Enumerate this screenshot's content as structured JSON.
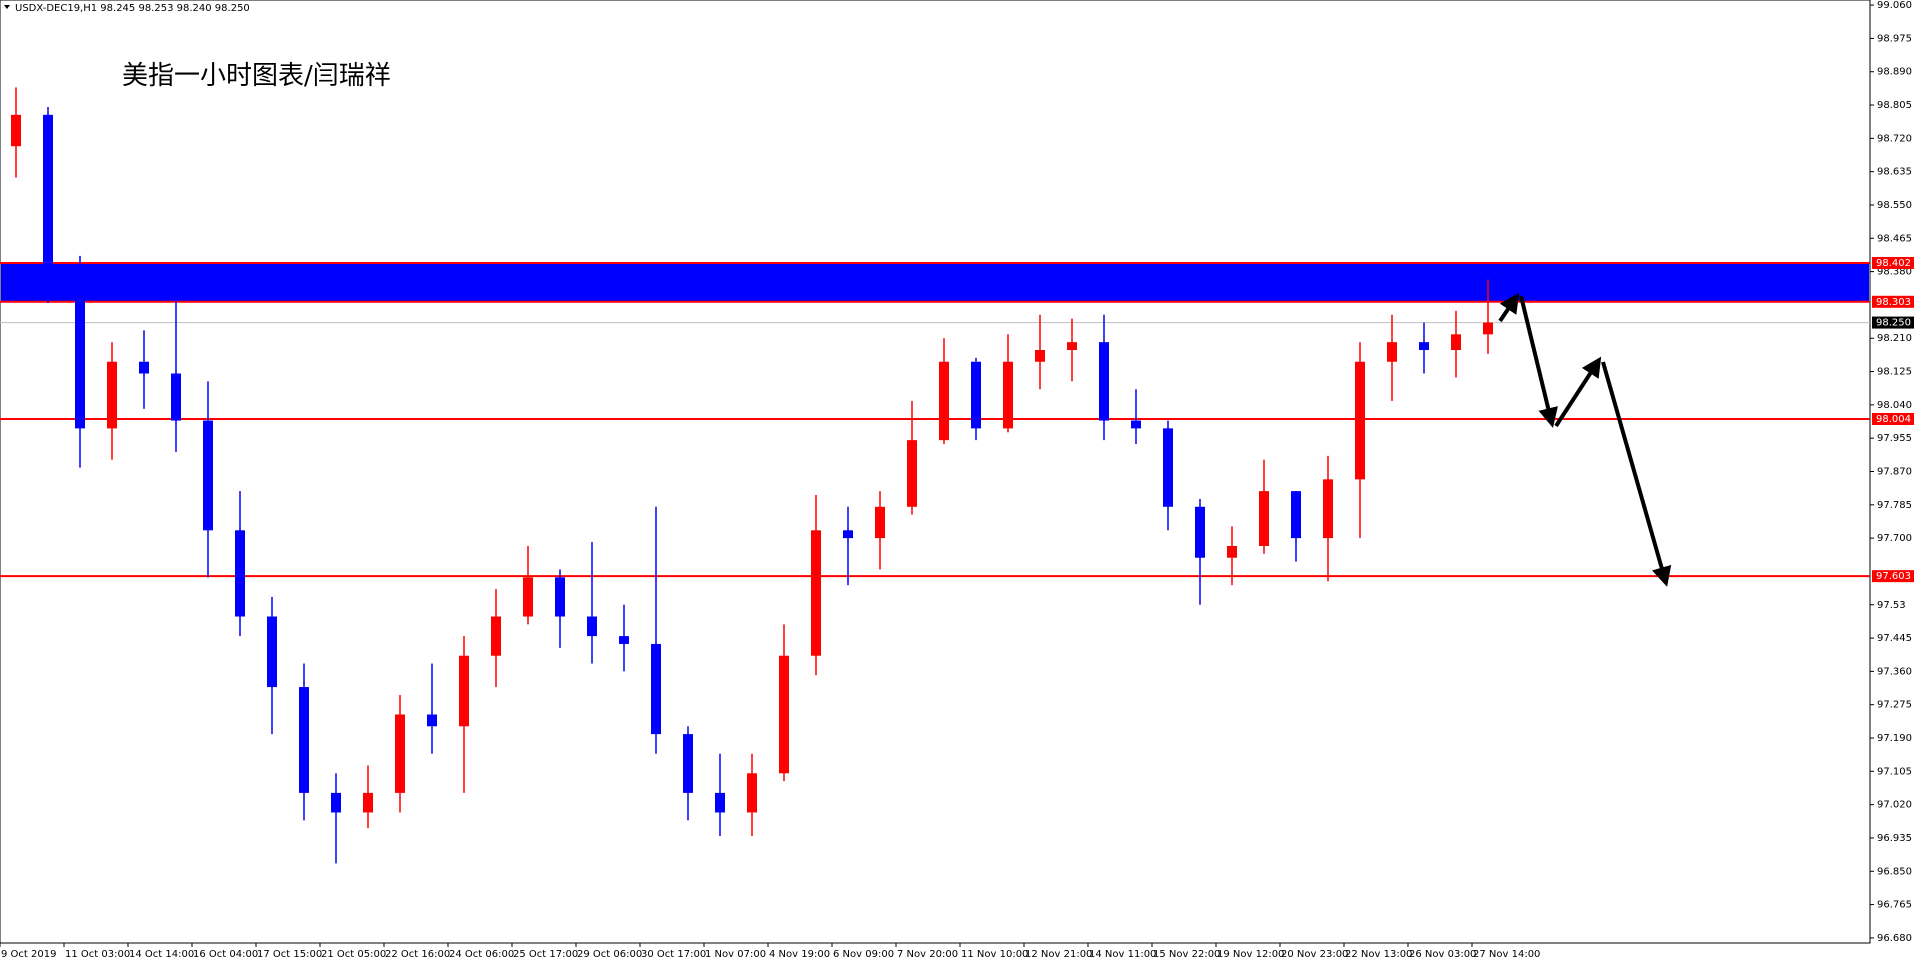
{
  "chart_data": {
    "type": "candlestick",
    "title": "USDX-DEC19,H1  98.245 98.253 98.240 98.250",
    "annotation": "美指一小时图表/闫瑞祥",
    "categories": [
      "9 Oct 2019",
      null,
      "11 Oct 03:00",
      null,
      "14 Oct 14:00",
      null,
      "16 Oct 04:00",
      null,
      "17 Oct 15:00",
      null,
      "21 Oct 05:00",
      null,
      "22 Oct 16:00",
      null,
      "24 Oct 06:00",
      null,
      "25 Oct 17:00",
      null,
      "29 Oct 06:00",
      null,
      "30 Oct 17:00",
      null,
      "1 Nov 07:00",
      null,
      "4 Nov 19:00",
      null,
      "6 Nov 09:00",
      null,
      "7 Nov 20:00",
      null,
      "11 Nov 10:00",
      null,
      "12 Nov 21:00",
      null,
      "14 Nov 11:00",
      null,
      "15 Nov 22:00",
      null,
      "19 Nov 12:00",
      null,
      "20 Nov 23:00",
      null,
      "22 Nov 13:00",
      null,
      "26 Nov 03:00",
      null,
      "27 Nov 14:00"
    ],
    "open": [
      98.7,
      98.78,
      98.36,
      97.98,
      98.15,
      98.12,
      98.0,
      97.72,
      97.5,
      97.32,
      97.05,
      97.0,
      97.05,
      97.25,
      97.22,
      97.4,
      97.5,
      97.6,
      97.5,
      97.45,
      97.43,
      97.2,
      97.05,
      97.0,
      97.1,
      97.4,
      97.72,
      97.7,
      97.78,
      97.95,
      98.15,
      97.98,
      98.15,
      98.18,
      98.2,
      98.0,
      97.98,
      97.78,
      97.65,
      97.68,
      97.82,
      97.7,
      97.85,
      98.15,
      98.2,
      98.18,
      98.22
    ],
    "high": [
      98.85,
      98.8,
      98.42,
      98.2,
      98.23,
      98.36,
      98.1,
      97.82,
      97.55,
      97.38,
      97.1,
      97.12,
      97.3,
      97.38,
      97.45,
      97.57,
      97.68,
      97.62,
      97.69,
      97.53,
      97.78,
      97.22,
      97.15,
      97.15,
      97.48,
      97.81,
      97.78,
      97.82,
      98.05,
      98.21,
      98.16,
      98.22,
      98.27,
      98.26,
      98.27,
      98.08,
      98.0,
      97.8,
      97.73,
      97.9,
      97.82,
      97.91,
      98.2,
      98.27,
      98.25,
      98.28,
      98.36
    ],
    "low": [
      98.62,
      98.3,
      97.88,
      97.9,
      98.03,
      97.92,
      97.6,
      97.45,
      97.2,
      96.98,
      96.87,
      96.96,
      97.0,
      97.15,
      97.05,
      97.32,
      97.48,
      97.42,
      97.38,
      97.36,
      97.15,
      96.98,
      96.94,
      96.94,
      97.08,
      97.35,
      97.58,
      97.62,
      97.76,
      97.94,
      97.95,
      97.97,
      98.08,
      98.1,
      97.95,
      97.94,
      97.72,
      97.53,
      97.58,
      97.66,
      97.64,
      97.59,
      97.7,
      98.05,
      98.12,
      98.11,
      98.17
    ],
    "close": [
      98.78,
      98.36,
      97.98,
      98.15,
      98.12,
      98.0,
      97.72,
      97.5,
      97.32,
      97.05,
      97.0,
      97.05,
      97.25,
      97.22,
      97.4,
      97.5,
      97.6,
      97.5,
      97.45,
      97.43,
      97.2,
      97.05,
      97.0,
      97.1,
      97.4,
      97.72,
      97.7,
      97.78,
      97.95,
      98.15,
      97.98,
      98.15,
      98.18,
      98.2,
      98.0,
      97.98,
      97.78,
      97.65,
      97.68,
      97.82,
      97.7,
      97.85,
      98.15,
      98.2,
      98.18,
      98.22,
      98.25
    ],
    "up_color": "#ff0000",
    "down_color": "#0000ff",
    "ylim": [
      96.667,
      99.073
    ],
    "yticks": [
      {
        "value": 99.06,
        "label": "99.060"
      },
      98.975,
      {
        "value": 98.89,
        "label": "98.890"
      },
      98.805,
      {
        "value": 98.72,
        "label": "98.720"
      },
      98.635,
      {
        "value": 98.55,
        "label": "98.550"
      },
      98.465,
      {
        "value": 98.38,
        "label": "98.380"
      },
      {
        "value": 98.21,
        "label": "98.210"
      },
      98.125,
      {
        "value": 98.04,
        "label": "98.040"
      },
      97.955,
      {
        "value": 97.87,
        "label": "97.870"
      },
      97.785,
      {
        "value": 97.7,
        "label": "97.700"
      },
      97.53,
      97.445,
      {
        "value": 97.36,
        "label": "97.360"
      },
      97.275,
      {
        "value": 97.19,
        "label": "97.190"
      },
      97.105,
      {
        "value": 97.02,
        "label": "97.020"
      },
      96.935,
      {
        "value": 96.85,
        "label": "96.850"
      },
      96.765,
      {
        "value": 96.68,
        "label": "96.680"
      }
    ],
    "zone": {
      "low": 98.303,
      "high": 98.402,
      "color": "#0000ff",
      "border": "#ff0000"
    },
    "levels": [
      {
        "price": 98.004,
        "color": "#ff0000"
      },
      {
        "price": 97.603,
        "color": "#ff0000"
      }
    ],
    "last_price": {
      "value": 98.25,
      "label": "98.250"
    }
  }
}
